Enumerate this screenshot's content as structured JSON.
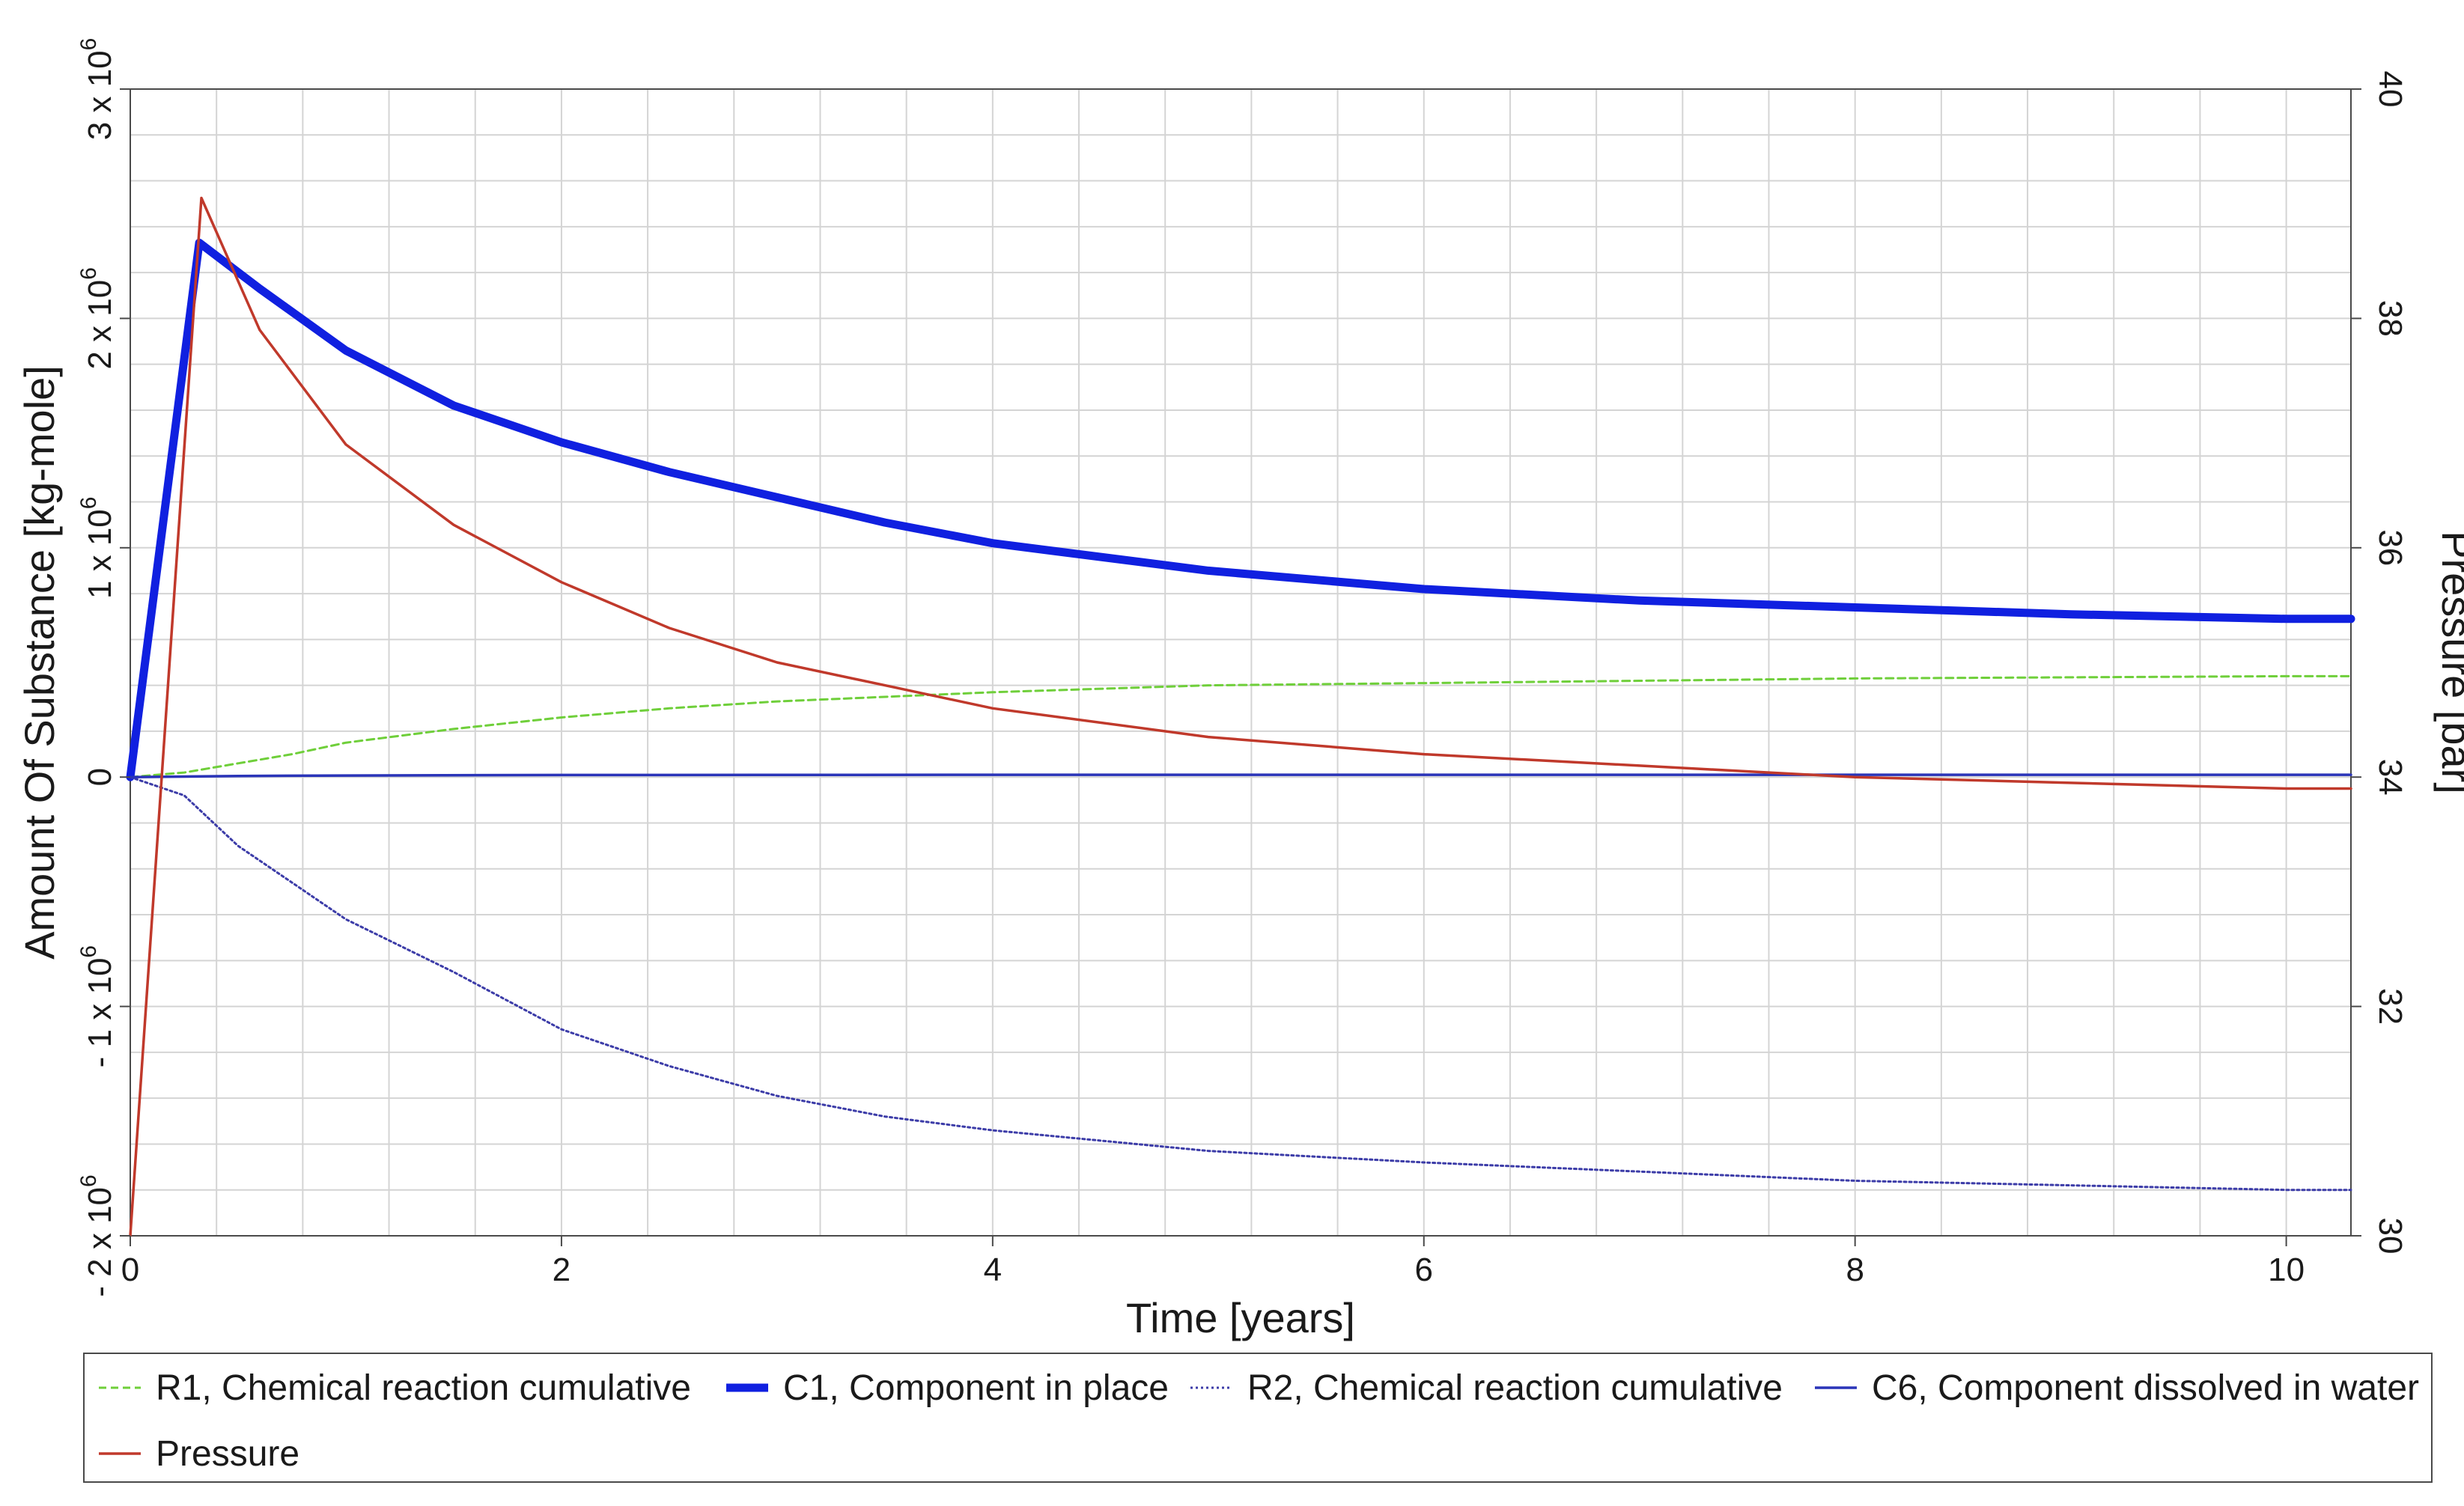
{
  "chart_data": {
    "type": "line",
    "title": "",
    "xlabel": "Time [years]",
    "ylabel_left": "Amount Of Substance [kg-mole]",
    "ylabel_right": "Pressure [bar]",
    "xlim": [
      0,
      10.3
    ],
    "ylim_left": [
      -2000000,
      3000000
    ],
    "ylim_right": [
      30,
      40
    ],
    "x_ticks": [
      0,
      2,
      4,
      6,
      8,
      10
    ],
    "x_tick_labels": [
      "0",
      "2",
      "4",
      "6",
      "8",
      "10"
    ],
    "y_left_ticks": [
      -2000000,
      -1000000,
      0,
      1000000,
      2000000,
      3000000
    ],
    "y_left_tick_labels": [
      {
        "mantissa": "- 2 x 10",
        "exp": "6"
      },
      {
        "mantissa": "- 1 x 10",
        "exp": "6"
      },
      {
        "mantissa": "0",
        "exp": ""
      },
      {
        "mantissa": "1 x 10",
        "exp": "6"
      },
      {
        "mantissa": "2 x 10",
        "exp": "6"
      },
      {
        "mantissa": "3 x 10",
        "exp": "6"
      }
    ],
    "y_right_ticks": [
      30,
      32,
      34,
      36,
      38,
      40
    ],
    "y_right_tick_labels": [
      "30",
      "32",
      "34",
      "36",
      "38",
      "40"
    ],
    "grid": true,
    "legend_position": "bottom",
    "series": [
      {
        "name": "R1, Chemical reaction cumulative",
        "axis": "left",
        "color": "#6fcf3a",
        "style": "dashed",
        "x": [
          0,
          0.25,
          0.5,
          0.75,
          1,
          1.5,
          2,
          2.5,
          3,
          3.5,
          4,
          5,
          6,
          7,
          8,
          9,
          10,
          10.3
        ],
        "y": [
          0,
          20000,
          60000,
          100000,
          150000,
          210000,
          260000,
          300000,
          330000,
          350000,
          370000,
          400000,
          410000,
          420000,
          430000,
          435000,
          440000,
          440000
        ]
      },
      {
        "name": "C1, Component in place",
        "axis": "left",
        "color": "#1020e0",
        "style": "thick",
        "x": [
          0,
          0.32,
          0.6,
          1,
          1.5,
          2,
          2.5,
          3,
          3.5,
          4,
          5,
          6,
          7,
          8,
          9,
          10,
          10.3
        ],
        "y": [
          0,
          2330000,
          2130000,
          1860000,
          1620000,
          1460000,
          1330000,
          1220000,
          1110000,
          1020000,
          900000,
          820000,
          770000,
          740000,
          710000,
          690000,
          690000
        ]
      },
      {
        "name": "R2, Chemical reaction cumulative",
        "axis": "left",
        "color": "#3c3ca8",
        "style": "dotted",
        "x": [
          0,
          0.25,
          0.5,
          0.75,
          1,
          1.5,
          2,
          2.5,
          3,
          3.5,
          4,
          5,
          6,
          7,
          8,
          9,
          10,
          10.3
        ],
        "y": [
          0,
          -80000,
          -300000,
          -460000,
          -620000,
          -850000,
          -1100000,
          -1260000,
          -1390000,
          -1480000,
          -1540000,
          -1630000,
          -1680000,
          -1720000,
          -1760000,
          -1780000,
          -1800000,
          -1800000
        ]
      },
      {
        "name": "C6, Component dissolved in water",
        "axis": "left",
        "color": "#2a34b8",
        "style": "solid",
        "x": [
          0,
          0.5,
          1,
          2,
          4,
          6,
          8,
          10,
          10.3
        ],
        "y": [
          0,
          5000,
          7000,
          9000,
          10000,
          10000,
          10000,
          10000,
          10000
        ]
      },
      {
        "name": "Pressure",
        "axis": "right",
        "color": "#c0392b",
        "style": "solid",
        "x": [
          0,
          0.33,
          0.6,
          1,
          1.5,
          2,
          2.5,
          3,
          3.5,
          4,
          5,
          6,
          7,
          8,
          9,
          10,
          10.3
        ],
        "y": [
          30,
          39.05,
          37.9,
          36.9,
          36.2,
          35.7,
          35.3,
          35.0,
          34.8,
          34.6,
          34.35,
          34.2,
          34.1,
          34.0,
          33.95,
          33.9,
          33.9
        ]
      }
    ]
  }
}
